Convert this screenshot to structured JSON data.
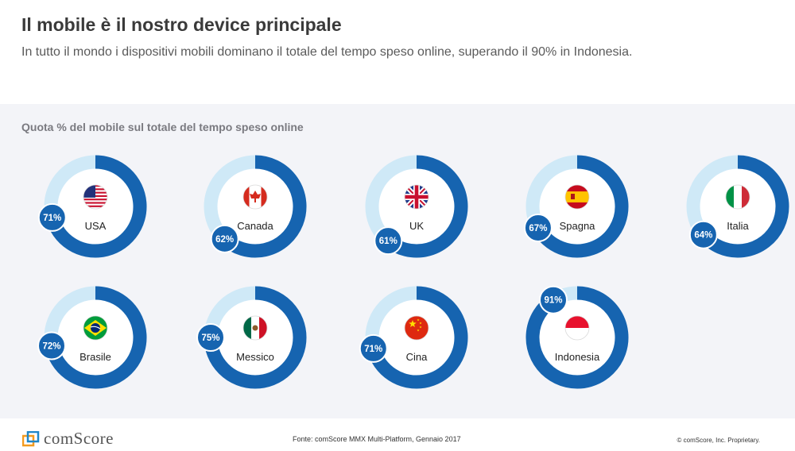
{
  "header": {
    "title": "Il mobile è il nostro device principale",
    "subtitle": "In tutto il mondo i dispositivi mobili dominano il totale del tempo speso online, superando il 90% in Indonesia."
  },
  "chart_data": {
    "type": "donut",
    "title": "Quota % del mobile sul totale del tempo speso online",
    "unit": "%",
    "colors": {
      "filled": "#1664b0",
      "remainder": "#cfe9f7",
      "badge": "#1664b0",
      "badge_text": "#ffffff"
    },
    "series": [
      {
        "country": "USA",
        "value": 71,
        "label": "71%",
        "flag": "us-flag-icon"
      },
      {
        "country": "Canada",
        "value": 62,
        "label": "62%",
        "flag": "canada-flag-icon"
      },
      {
        "country": "UK",
        "value": 61,
        "label": "61%",
        "flag": "uk-flag-icon"
      },
      {
        "country": "Spagna",
        "value": 67,
        "label": "67%",
        "flag": "spain-flag-icon"
      },
      {
        "country": "Italia",
        "value": 64,
        "label": "64%",
        "flag": "italy-flag-icon"
      },
      {
        "country": "Brasile",
        "value": 72,
        "label": "72%",
        "flag": "brazil-flag-icon"
      },
      {
        "country": "Messico",
        "value": 75,
        "label": "75%",
        "flag": "mexico-flag-icon"
      },
      {
        "country": "Cina",
        "value": 71,
        "label": "71%",
        "flag": "china-flag-icon"
      },
      {
        "country": "Indonesia",
        "value": 91,
        "label": "91%",
        "flag": "indonesia-flag-icon"
      }
    ]
  },
  "footer": {
    "source": "Fonte: comScore MMX Multi-Platform, Gennaio 2017",
    "copyright": "© comScore, Inc. Proprietary.",
    "logo_text": "comScore"
  }
}
